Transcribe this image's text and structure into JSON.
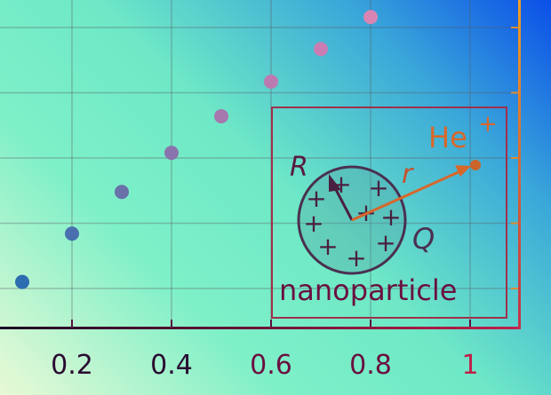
{
  "chart_data": {
    "type": "scatter",
    "title": "",
    "xlabel": "",
    "ylabel": "",
    "xlim": [
      0.055,
      1.1
    ],
    "ylim": [
      -0.6,
      4.4
    ],
    "grid": true,
    "x_ticks": [
      "0.2",
      "0.4",
      "0.6",
      "0.8",
      "1"
    ],
    "x_tick_values": [
      0.2,
      0.4,
      0.6,
      0.8,
      1
    ],
    "y_gridlines": [
      0,
      1,
      2,
      3,
      4
    ],
    "points": [
      {
        "x": 0.1,
        "y": 0.1,
        "color": "#2b6db0"
      },
      {
        "x": 0.2,
        "y": 0.84,
        "color": "#4a6fae"
      },
      {
        "x": 0.3,
        "y": 1.48,
        "color": "#6a70a8"
      },
      {
        "x": 0.4,
        "y": 2.08,
        "color": "#8a74ad"
      },
      {
        "x": 0.5,
        "y": 2.64,
        "color": "#a678ae"
      },
      {
        "x": 0.6,
        "y": 3.17,
        "color": "#bb7bb0"
      },
      {
        "x": 0.7,
        "y": 3.67,
        "color": "#c97db2"
      },
      {
        "x": 0.8,
        "y": 4.16,
        "color": "#d985b4"
      }
    ]
  },
  "inset": {
    "label": "nanoparticle",
    "radius_label": "R",
    "distance_label": "r",
    "charge_label": "Q",
    "ion_label": "He",
    "ion_charge": "+",
    "plus_sign": "+",
    "colors": {
      "frame": "#a0304a",
      "ion": "#d8672a",
      "particle": "#4a3050",
      "text": "#6a1040"
    }
  }
}
